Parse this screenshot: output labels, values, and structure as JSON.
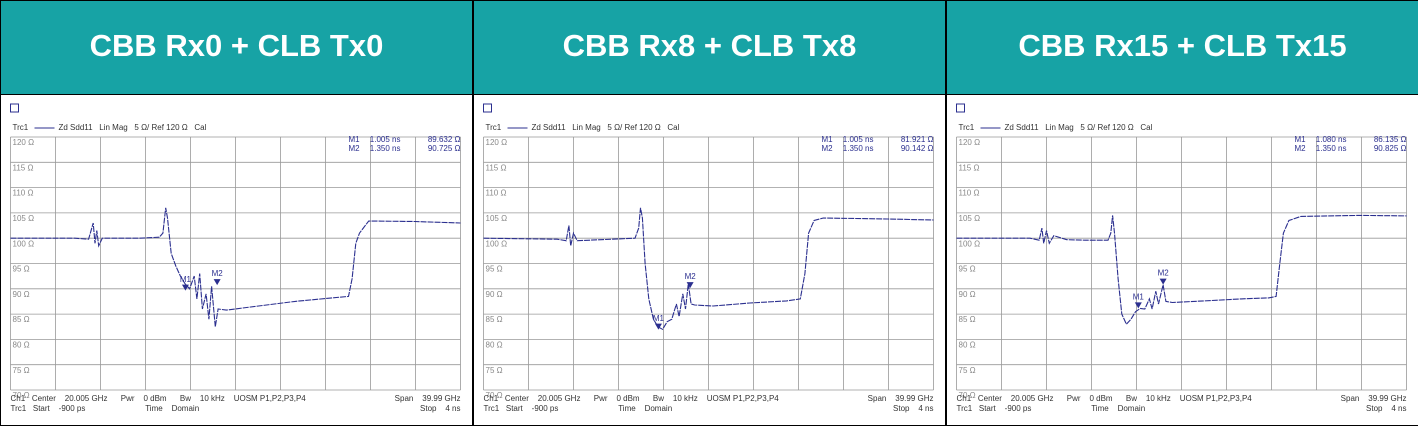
{
  "chart_data": [
    {
      "type": "line",
      "title": "CBB Rx0 + CLB Tx0",
      "trace_info": "Zd Sdd11   Lin Mag   5 Ω/ Ref 120 Ω   Cal",
      "status_left": [
        "Ch1   Center    20.005 GHz      Pwr    0 dBm      Bw    10 kHz    UOSM P1,P2,P3,P4",
        "Trc1   Start    -900 ps                           Time    Domain"
      ],
      "status_right": [
        "Span    39.99 GHz",
        "Stop    4 ns"
      ],
      "xlim": [
        -0.9,
        4.0
      ],
      "xticks": [
        -0.9,
        -0.41,
        0.08,
        0.57,
        1.06,
        1.55,
        2.04,
        2.53,
        3.02,
        3.51,
        4.0
      ],
      "ylim": [
        70,
        120
      ],
      "yticks": [
        {
          "value": 120,
          "label": "120 Ω"
        },
        {
          "value": 115,
          "label": "115 Ω"
        },
        {
          "value": 110,
          "label": "110 Ω"
        },
        {
          "value": 105,
          "label": "105 Ω"
        },
        {
          "value": 100,
          "label": "100 Ω"
        },
        {
          "value": 95,
          "label": "95 Ω"
        },
        {
          "value": 90,
          "label": "90 Ω"
        },
        {
          "value": 85,
          "label": "85 Ω"
        },
        {
          "value": 80,
          "label": "80 Ω"
        },
        {
          "value": 75,
          "label": "75 Ω"
        },
        {
          "value": 70,
          "label": "70 Ω"
        }
      ],
      "grid": true,
      "markers": [
        {
          "name": "M1",
          "x": {
            "value": 1.005,
            "label": "1.005 ns"
          },
          "y": {
            "value": 89.632,
            "label": "89.632 Ω"
          }
        },
        {
          "name": "M2",
          "x": {
            "value": 1.35,
            "label": "1.350 ns"
          },
          "y": {
            "value": 90.725,
            "label": "90.725 Ω"
          }
        }
      ],
      "x": [
        -0.9,
        -0.2,
        -0.05,
        0.0,
        0.02,
        0.04,
        0.06,
        0.1,
        0.5,
        0.72,
        0.76,
        0.79,
        0.81,
        0.85,
        0.9,
        0.95,
        1.0,
        1.05,
        1.1,
        1.13,
        1.16,
        1.19,
        1.23,
        1.26,
        1.29,
        1.33,
        1.36,
        1.45,
        1.8,
        2.2,
        2.6,
        2.78,
        2.82,
        2.86,
        2.9,
        3.0,
        3.5,
        4.0
      ],
      "series": [
        {
          "name": "Trc1",
          "color": "#2b2f8f",
          "values": [
            100,
            100,
            99.8,
            103,
            99,
            101.5,
            98.5,
            100,
            100,
            100.2,
            101,
            106,
            104,
            97,
            94.5,
            92.5,
            91,
            90,
            92.5,
            88,
            93,
            86,
            89,
            84,
            90.5,
            82.5,
            86,
            85.8,
            86.6,
            87.5,
            88.2,
            88.5,
            92,
            99,
            101,
            103.4,
            103.3,
            103
          ]
        }
      ]
    },
    {
      "type": "line",
      "title": "CBB Rx8 + CLB Tx8",
      "trace_info": "Zd Sdd11   Lin Mag   5 Ω/ Ref 120 Ω   Cal",
      "status_left": [
        "Ch1   Center    20.005 GHz      Pwr    0 dBm      Bw    10 kHz    UOSM P1,P2,P3,P4",
        "Trc1   Start    -900 ps                           Time    Domain"
      ],
      "status_right": [
        "Span    39.99 GHz",
        "Stop    4 ns"
      ],
      "xlim": [
        -0.9,
        4.0
      ],
      "xticks": [
        -0.9,
        -0.41,
        0.08,
        0.57,
        1.06,
        1.55,
        2.04,
        2.53,
        3.02,
        3.51,
        4.0
      ],
      "ylim": [
        70,
        120
      ],
      "yticks": [
        {
          "value": 120,
          "label": "120 Ω"
        },
        {
          "value": 115,
          "label": "115 Ω"
        },
        {
          "value": 110,
          "label": "110 Ω"
        },
        {
          "value": 105,
          "label": "105 Ω"
        },
        {
          "value": 100,
          "label": "100 Ω"
        },
        {
          "value": 95,
          "label": "95 Ω"
        },
        {
          "value": 90,
          "label": "90 Ω"
        },
        {
          "value": 85,
          "label": "85 Ω"
        },
        {
          "value": 80,
          "label": "80 Ω"
        },
        {
          "value": 75,
          "label": "75 Ω"
        },
        {
          "value": 70,
          "label": "70 Ω"
        }
      ],
      "grid": true,
      "markers": [
        {
          "name": "M1",
          "x": {
            "value": 1.005,
            "label": "1.005 ns"
          },
          "y": {
            "value": 81.921,
            "label": "81.921 Ω"
          }
        },
        {
          "name": "M2",
          "x": {
            "value": 1.35,
            "label": "1.350 ns"
          },
          "y": {
            "value": 90.142,
            "label": "90.142 Ω"
          }
        }
      ],
      "x": [
        -0.9,
        -0.1,
        0.0,
        0.03,
        0.05,
        0.08,
        0.12,
        0.5,
        0.75,
        0.79,
        0.81,
        0.83,
        0.86,
        0.9,
        0.95,
        1.0,
        1.05,
        1.1,
        1.15,
        1.2,
        1.23,
        1.27,
        1.3,
        1.33,
        1.36,
        1.4,
        1.6,
        2.0,
        2.4,
        2.55,
        2.6,
        2.64,
        2.7,
        2.8,
        3.5,
        4.0
      ],
      "series": [
        {
          "name": "Trc1",
          "color": "#2b2f8f",
          "values": [
            100,
            99.8,
            99.5,
            102.5,
            98.5,
            101,
            99.5,
            99.8,
            100,
            102,
            106,
            104,
            95,
            88,
            84,
            82.5,
            82,
            83.5,
            84,
            87,
            84.5,
            89,
            86,
            91,
            87,
            86.8,
            86.6,
            87.2,
            87.6,
            88,
            93,
            101,
            103.5,
            104,
            103.8,
            103.6
          ]
        }
      ]
    },
    {
      "type": "line",
      "title": "CBB Rx15 + CLB Tx15",
      "trace_info": "Zd Sdd11   Lin Mag   5 Ω/ Ref 120 Ω   Cal",
      "status_left": [
        "Ch1   Center    20.005 GHz      Pwr    0 dBm      Bw    10 kHz    UOSM P1,P2,P3,P4",
        "Trc1   Start    -900 ps                           Time    Domain"
      ],
      "status_right": [
        "Span    39.99 GHz",
        "Stop    4 ns"
      ],
      "xlim": [
        -0.9,
        4.0
      ],
      "xticks": [
        -0.9,
        -0.41,
        0.08,
        0.57,
        1.06,
        1.55,
        2.04,
        2.53,
        3.02,
        3.51,
        4.0
      ],
      "ylim": [
        70,
        120
      ],
      "yticks": [
        {
          "value": 120,
          "label": "120 Ω"
        },
        {
          "value": 115,
          "label": "115 Ω"
        },
        {
          "value": 110,
          "label": "110 Ω"
        },
        {
          "value": 105,
          "label": "105 Ω"
        },
        {
          "value": 100,
          "label": "100 Ω"
        },
        {
          "value": 95,
          "label": "95 Ω"
        },
        {
          "value": 90,
          "label": "90 Ω"
        },
        {
          "value": 85,
          "label": "85 Ω"
        },
        {
          "value": 80,
          "label": "80 Ω"
        },
        {
          "value": 75,
          "label": "75 Ω"
        },
        {
          "value": 70,
          "label": "70 Ω"
        }
      ],
      "grid": true,
      "markers": [
        {
          "name": "M1",
          "x": {
            "value": 1.08,
            "label": "1.080 ns"
          },
          "y": {
            "value": 86.135,
            "label": "86.135 Ω"
          }
        },
        {
          "name": "M2",
          "x": {
            "value": 1.35,
            "label": "1.350 ns"
          },
          "y": {
            "value": 90.825,
            "label": "90.825 Ω"
          }
        }
      ],
      "x": [
        -0.9,
        -0.1,
        0.0,
        0.03,
        0.05,
        0.08,
        0.11,
        0.16,
        0.3,
        0.5,
        0.75,
        0.78,
        0.8,
        0.82,
        0.86,
        0.9,
        0.95,
        1.0,
        1.05,
        1.1,
        1.15,
        1.2,
        1.23,
        1.27,
        1.3,
        1.35,
        1.38,
        1.45,
        1.8,
        2.2,
        2.5,
        2.58,
        2.62,
        2.66,
        2.72,
        2.85,
        3.5,
        4.0
      ],
      "series": [
        {
          "name": "Trc1",
          "color": "#2b2f8f",
          "values": [
            100,
            100,
            99.6,
            102,
            99,
            101.5,
            99,
            100.5,
            99.7,
            99.6,
            99.6,
            101,
            104.5,
            101,
            92,
            85,
            83,
            84,
            85.5,
            86.1,
            86,
            88,
            86,
            89.5,
            87,
            90.8,
            87.5,
            87.3,
            87.6,
            88,
            88.2,
            88.5,
            95,
            101,
            103.5,
            104.3,
            104.5,
            104.4
          ]
        }
      ]
    }
  ]
}
